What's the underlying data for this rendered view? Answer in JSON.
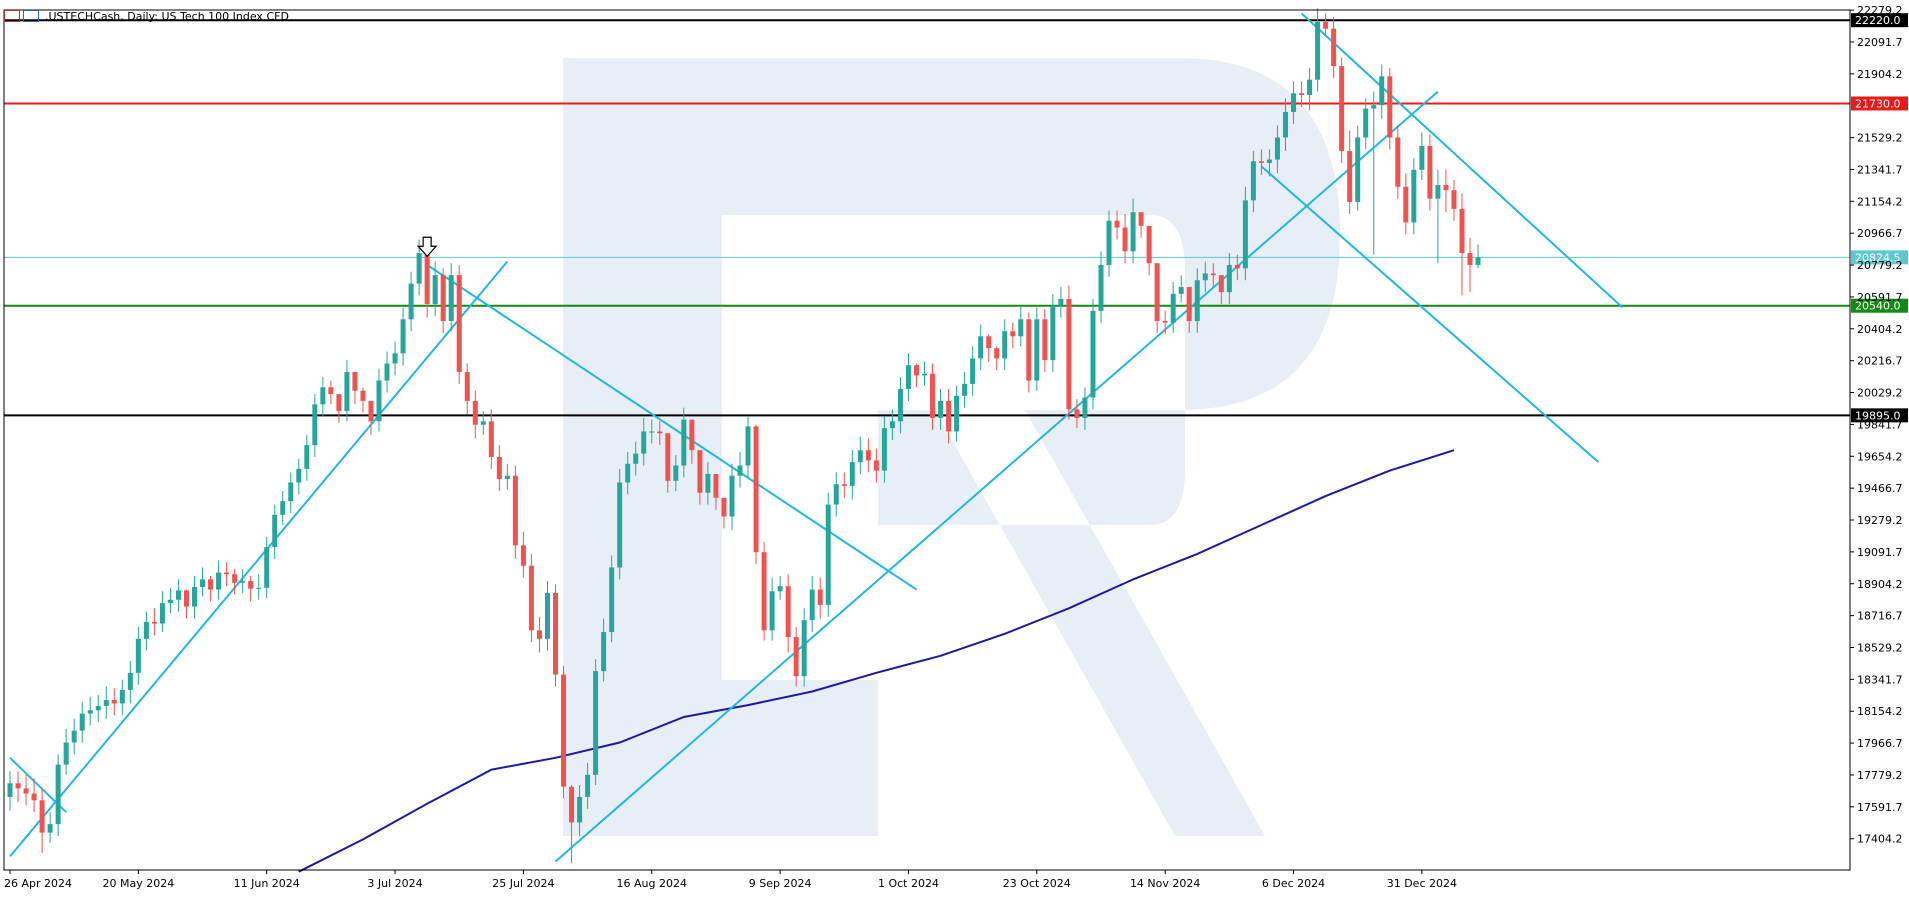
{
  "header": {
    "symbol": ".USTECHCash",
    "timeframe": "Daily",
    "description": "US Tech 100 Index CFD",
    "title_text": ".USTECHCash, Daily:  US Tech 100 Index CFD"
  },
  "colors": {
    "bull": "#26a69a",
    "bear": "#ef5350",
    "trend_line": "#1eb8e6",
    "moving_average": "#1a1aa6",
    "resistance": "#e81a1a",
    "support": "#138a13",
    "key_level": "#000000",
    "last_price": "#5cc8cf"
  },
  "chart_data": {
    "type": "candlestick",
    "title": ".USTECHCash, Daily:  US Tech 100 Index CFD",
    "y_range": [
      17220,
      22280
    ],
    "y_ticks": [
      "22279.2",
      "22091.7",
      "21904.2",
      "21529.2",
      "21341.7",
      "21154.2",
      "20966.7",
      "20779.2",
      "20591.7",
      "20404.2",
      "20216.7",
      "20029.2",
      "19841.7",
      "19654.2",
      "19466.7",
      "19279.2",
      "19091.7",
      "18904.2",
      "18716.7",
      "18529.2",
      "18341.7",
      "18154.2",
      "17966.7",
      "17779.2",
      "17591.7",
      "17404.2"
    ],
    "x_labels": [
      "26 Apr 2024",
      "20 May 2024",
      "11 Jun 2024",
      "3 Jul 2024",
      "25 Jul 2024",
      "16 Aug 2024",
      "9 Sep 2024",
      "1 Oct 2024",
      "23 Oct 2024",
      "14 Nov 2024",
      "6 Dec 2024",
      "31 Dec 2024"
    ],
    "x_label_bars": [
      0,
      16,
      32,
      48,
      64,
      80,
      96,
      112,
      128,
      144,
      160,
      176
    ],
    "bars_total": 190,
    "price_levels": [
      {
        "label": "22220.0",
        "value": 22220.0,
        "role": "key_level"
      },
      {
        "label": "21730.0",
        "value": 21730.0,
        "role": "resistance"
      },
      {
        "label": "20824.5",
        "value": 20824.5,
        "role": "last_price"
      },
      {
        "label": "20540.0",
        "value": 20540.0,
        "role": "support"
      },
      {
        "label": "19895.0",
        "value": 19895.0,
        "role": "key_level"
      }
    ],
    "trend_lines": [
      {
        "name": "uptrend-1",
        "start": [
          0,
          17300
        ],
        "end": [
          62,
          20800
        ]
      },
      {
        "name": "downtrend-1",
        "start": [
          52,
          20780
        ],
        "end": [
          113,
          18870
        ]
      },
      {
        "name": "uptrend-2",
        "start": [
          68,
          17270
        ],
        "end": [
          178,
          21800
        ]
      },
      {
        "name": "channel-upper",
        "start": [
          161,
          22260
        ],
        "end": [
          201,
          20530
        ]
      },
      {
        "name": "channel-lower",
        "start": [
          156,
          21360
        ],
        "end": [
          198,
          19620
        ]
      },
      {
        "name": "early-line",
        "start": [
          0,
          17880
        ],
        "end": [
          7,
          17560
        ]
      }
    ],
    "signal_marker": {
      "type": "down-arrow",
      "bar": 52,
      "price": 20890
    },
    "moving_average": {
      "name": "MA",
      "bars": [
        36,
        44,
        52,
        60,
        68,
        76,
        84,
        92,
        100,
        108,
        116,
        124,
        132,
        140,
        148,
        156,
        164,
        172,
        180
      ],
      "values": [
        17210,
        17400,
        17610,
        17810,
        17880,
        17970,
        18120,
        18190,
        18270,
        18380,
        18480,
        18610,
        18760,
        18930,
        19080,
        19250,
        19420,
        19570,
        19690
      ]
    },
    "ohlc": {
      "open": [
        17650,
        17730,
        17700,
        17670,
        17630,
        17440,
        17490,
        17840,
        17970,
        18040,
        18140,
        18160,
        18185,
        18220,
        18200,
        18280,
        18380,
        18580,
        18680,
        18670,
        18790,
        18810,
        18865,
        18770,
        18885,
        18930,
        18870,
        18970,
        18960,
        18910,
        18920,
        18875,
        18880,
        19120,
        19310,
        19390,
        19500,
        19580,
        19720,
        19960,
        20060,
        20020,
        19920,
        20150,
        20040,
        19980,
        19860,
        20100,
        20200,
        20260,
        20460,
        20670,
        20850,
        20550,
        20720,
        20450,
        20720,
        20150,
        19980,
        19840,
        19860,
        19650,
        19520,
        19540,
        19130,
        19010,
        18630,
        18580,
        18850,
        18370,
        17710,
        17500,
        17650,
        17780,
        18390,
        18620,
        19000,
        19500,
        19610,
        19670,
        19800,
        19800,
        19790,
        19510,
        19600,
        19870,
        19690,
        19440,
        19550,
        19410,
        19300,
        19540,
        19600,
        19830,
        19090,
        18630,
        18860,
        18890,
        18590,
        18360,
        18690,
        18870,
        18780,
        19370,
        19490,
        19480,
        19620,
        19690,
        19630,
        19570,
        19820,
        19860,
        20050,
        20190,
        20130,
        20140,
        19880,
        19980,
        19800,
        20010,
        20080,
        20230,
        20360,
        20290,
        20230,
        20390,
        20360,
        20460,
        20100,
        20460,
        20220,
        20540,
        20580,
        19930,
        19880,
        20000,
        20510,
        20780,
        21040,
        21000,
        20860,
        21090,
        21010,
        20790,
        20450,
        20440,
        20610,
        20650,
        20450,
        20690,
        20730,
        20720,
        20620,
        20780,
        20760,
        21160,
        21390,
        21380,
        21400,
        21530,
        21680,
        21790,
        21780,
        21870,
        22210,
        22170,
        21950,
        21450,
        21150,
        21530,
        21700,
        21720,
        21890,
        21530,
        21240,
        21030,
        21340,
        21480,
        21170,
        21250,
        21220,
        21110,
        20850,
        20780
      ],
      "close": [
        17730,
        17700,
        17670,
        17630,
        17440,
        17490,
        17840,
        17970,
        18040,
        18140,
        18160,
        18185,
        18220,
        18200,
        18280,
        18380,
        18580,
        18680,
        18670,
        18790,
        18810,
        18865,
        18770,
        18885,
        18930,
        18870,
        18970,
        18960,
        18910,
        18920,
        18875,
        18880,
        19120,
        19310,
        19390,
        19500,
        19580,
        19720,
        19960,
        20060,
        20020,
        19920,
        20150,
        20040,
        19980,
        19860,
        20100,
        20200,
        20260,
        20460,
        20670,
        20850,
        20550,
        20720,
        20450,
        20720,
        20150,
        19980,
        19840,
        19860,
        19650,
        19520,
        19540,
        19130,
        19010,
        18630,
        18580,
        18850,
        18370,
        17710,
        17500,
        17650,
        17780,
        18390,
        18620,
        19000,
        19500,
        19610,
        19670,
        19800,
        19800,
        19790,
        19510,
        19600,
        19870,
        19690,
        19440,
        19550,
        19410,
        19300,
        19540,
        19600,
        19830,
        19090,
        18630,
        18860,
        18890,
        18590,
        18360,
        18690,
        18870,
        18780,
        19370,
        19490,
        19480,
        19620,
        19690,
        19630,
        19570,
        19820,
        19860,
        20050,
        20190,
        20130,
        20140,
        19880,
        19980,
        19800,
        20010,
        20080,
        20230,
        20360,
        20290,
        20230,
        20390,
        20360,
        20460,
        20100,
        20460,
        20220,
        20540,
        20580,
        19930,
        19880,
        20000,
        20510,
        20780,
        21040,
        21000,
        20860,
        21090,
        21010,
        20790,
        20450,
        20440,
        20610,
        20650,
        20450,
        20690,
        20730,
        20720,
        20620,
        20780,
        20760,
        21160,
        21390,
        21380,
        21400,
        21530,
        21680,
        21790,
        21780,
        21870,
        22210,
        22170,
        21950,
        21450,
        21150,
        21530,
        21700,
        21720,
        21890,
        21530,
        21240,
        21030,
        21340,
        21480,
        21170,
        21250,
        21220,
        21110,
        20850,
        20780,
        20824.5
      ],
      "high": [
        17800,
        17800,
        17780,
        17760,
        17700,
        17560,
        17900,
        18050,
        18110,
        18210,
        18240,
        18250,
        18300,
        18290,
        18340,
        18450,
        18650,
        18740,
        18760,
        18860,
        18880,
        18930,
        18870,
        18950,
        19000,
        18950,
        19040,
        19030,
        18990,
        18990,
        18950,
        18960,
        19180,
        19370,
        19450,
        19560,
        19640,
        19780,
        20020,
        20120,
        20100,
        20000,
        20220,
        20120,
        20060,
        19940,
        20170,
        20270,
        20330,
        20530,
        20740,
        20930,
        20780,
        20800,
        20760,
        20790,
        20780,
        20200,
        20040,
        19920,
        19930,
        19720,
        19610,
        19600,
        19210,
        19080,
        18710,
        18920,
        18900,
        18420,
        17720,
        17720,
        17850,
        18460,
        18700,
        19070,
        19580,
        19680,
        19740,
        19880,
        19870,
        19860,
        19590,
        19660,
        19940,
        19760,
        19520,
        19620,
        19500,
        19380,
        19610,
        19680,
        19890,
        19840,
        19150,
        18940,
        18950,
        18960,
        18650,
        18760,
        18950,
        18940,
        19440,
        19560,
        19560,
        19690,
        19770,
        19760,
        19700,
        19890,
        19930,
        20120,
        20260,
        20200,
        20210,
        20200,
        20050,
        20050,
        20070,
        20150,
        20300,
        20430,
        20370,
        20300,
        20460,
        20440,
        20540,
        20500,
        20530,
        20520,
        20610,
        20650,
        20660,
        19990,
        20060,
        20580,
        20860,
        21100,
        21100,
        21080,
        21170,
        21080,
        20900,
        20650,
        20510,
        20680,
        20720,
        20640,
        20760,
        20800,
        20790,
        20700,
        20850,
        20840,
        21240,
        21450,
        21460,
        21460,
        21600,
        21760,
        21860,
        21860,
        21940,
        22290,
        22260,
        22240,
        22000,
        21570,
        21600,
        21760,
        21800,
        21960,
        21940,
        21600,
        21320,
        21410,
        21560,
        21550,
        21340,
        21340,
        21280,
        21200,
        20940,
        20900
      ],
      "low": [
        17570,
        17620,
        17600,
        17560,
        17320,
        17380,
        17420,
        17780,
        17900,
        17970,
        18070,
        18090,
        18110,
        18130,
        18130,
        18200,
        18310,
        18510,
        18600,
        18620,
        18730,
        18740,
        18700,
        18700,
        18830,
        18800,
        18810,
        18890,
        18840,
        18850,
        18800,
        18810,
        18820,
        19050,
        19250,
        19320,
        19430,
        19510,
        19650,
        19890,
        19960,
        19850,
        19860,
        19960,
        19910,
        19780,
        19800,
        20030,
        20130,
        20190,
        20390,
        20600,
        20470,
        20480,
        20380,
        20390,
        20080,
        19900,
        19760,
        19780,
        19580,
        19450,
        19460,
        19050,
        18940,
        18560,
        18500,
        18510,
        18300,
        17640,
        17260,
        17420,
        17580,
        17720,
        18330,
        18560,
        18930,
        19430,
        19540,
        19600,
        19730,
        19720,
        19440,
        19450,
        19530,
        19610,
        19370,
        19370,
        19340,
        19230,
        19220,
        19470,
        19530,
        19020,
        18570,
        18570,
        18810,
        18500,
        18300,
        18300,
        18620,
        18700,
        18710,
        19300,
        19410,
        19400,
        19550,
        19560,
        19500,
        19500,
        19750,
        19790,
        19980,
        20060,
        20070,
        19810,
        19810,
        19730,
        19740,
        19940,
        20010,
        20160,
        20210,
        20160,
        20160,
        20290,
        20300,
        20030,
        20040,
        20150,
        20150,
        20470,
        19870,
        19820,
        19810,
        19930,
        20440,
        20710,
        20930,
        20790,
        20790,
        20940,
        20720,
        20380,
        20370,
        20380,
        20560,
        20380,
        20380,
        20620,
        20650,
        20550,
        20550,
        20690,
        20690,
        21090,
        21310,
        21300,
        21320,
        21450,
        21610,
        21710,
        21690,
        21800,
        22130,
        21880,
        21380,
        21080,
        21100,
        21460,
        20840,
        21640,
        21460,
        21170,
        20960,
        20960,
        21280,
        21100,
        20790,
        21090,
        21040,
        20600,
        20620,
        20760
      ]
    }
  }
}
